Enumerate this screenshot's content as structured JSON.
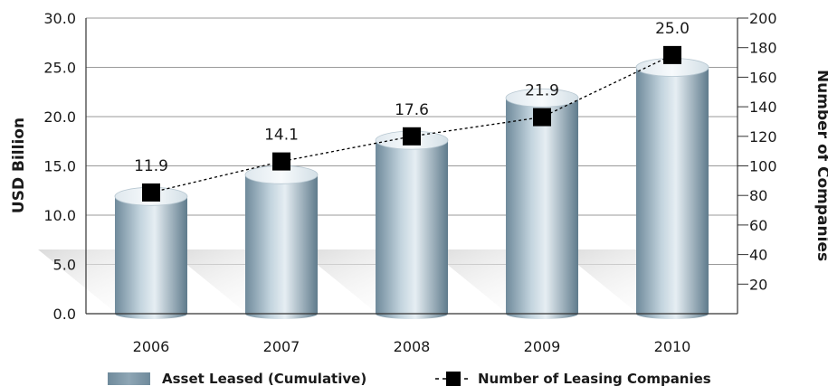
{
  "chart_data": {
    "type": "bar",
    "categories": [
      "2006",
      "2007",
      "2008",
      "2009",
      "2010"
    ],
    "series": [
      {
        "name": "Asset Leased (Cumulative)",
        "type": "bar",
        "axis": "left",
        "values": [
          11.9,
          14.1,
          17.6,
          21.9,
          25.0
        ],
        "color": "#7e9aab"
      },
      {
        "name": "Number of Leasing Companies",
        "type": "line",
        "axis": "right",
        "values": [
          82,
          103,
          120,
          133,
          175
        ],
        "color": "#000000",
        "line_style": "dashed",
        "marker": "square"
      }
    ],
    "data_labels": [
      "11.9",
      "14.1",
      "17.6",
      "21.9",
      "25.0"
    ],
    "ylabel": "USD Billion",
    "ylim": [
      0,
      30
    ],
    "yticks": [
      "0.0",
      "5.0",
      "10.0",
      "15.0",
      "20.0",
      "25.0",
      "30.0"
    ],
    "y2label": "Number of Companies",
    "y2lim": [
      0,
      200
    ],
    "y2ticks": [
      "20",
      "40",
      "60",
      "80",
      "100",
      "120",
      "140",
      "160",
      "180",
      "200"
    ],
    "grid": "horizontal",
    "legend_position": "bottom"
  }
}
